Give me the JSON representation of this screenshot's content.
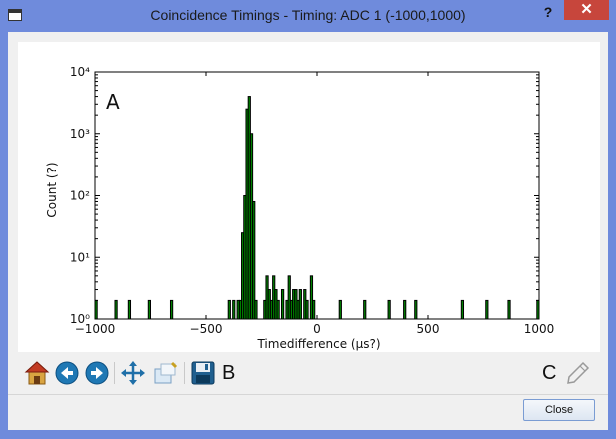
{
  "window": {
    "title": "Coincidence Timings - Timing: ADC 1 (-1000,1000)",
    "help_label": "?",
    "close_label": "✕"
  },
  "toolbar": {
    "buttons": [
      {
        "name": "home",
        "icon": "home-icon"
      },
      {
        "name": "back",
        "icon": "arrow-left-icon"
      },
      {
        "name": "forward",
        "icon": "arrow-right-icon"
      },
      {
        "name": "pan",
        "icon": "move-arrows-icon"
      },
      {
        "name": "zoom",
        "icon": "zoom-icon"
      },
      {
        "name": "save",
        "icon": "floppy-disk-icon"
      },
      {
        "name": "edit",
        "icon": "pencil-icon"
      }
    ],
    "label_b": "B",
    "label_c": "C"
  },
  "footer": {
    "close_button": "Close"
  },
  "colors": {
    "bar_fill": "#008000",
    "bar_edge": "#000000",
    "titlebar": "#6f8bdc",
    "close_red": "#c7463c"
  },
  "chart_data": {
    "type": "bar",
    "xlabel": "Timedifference (µs?)",
    "ylabel": "Count (?)",
    "annotation": "A",
    "xlim": [
      -1000,
      1000
    ],
    "ylim": [
      1,
      10000
    ],
    "yscale": "log",
    "xticks": [
      -1000,
      -500,
      0,
      500,
      1000
    ],
    "xtick_labels": [
      "−1000",
      "−500",
      "0",
      "500",
      "1000"
    ],
    "yticks": [
      1,
      10,
      100,
      1000,
      10000
    ],
    "ytick_labels": [
      "10⁰",
      "10¹",
      "10²",
      "10³",
      "10⁴"
    ],
    "bin_width": 10,
    "bins": [
      {
        "x": -995,
        "y": 2
      },
      {
        "x": -905,
        "y": 2
      },
      {
        "x": -845,
        "y": 2
      },
      {
        "x": -755,
        "y": 2
      },
      {
        "x": -655,
        "y": 2
      },
      {
        "x": -395,
        "y": 2
      },
      {
        "x": -375,
        "y": 2
      },
      {
        "x": -345,
        "y": 2
      },
      {
        "x": -355,
        "y": 2
      },
      {
        "x": -335,
        "y": 25
      },
      {
        "x": -325,
        "y": 100
      },
      {
        "x": -315,
        "y": 2500
      },
      {
        "x": -305,
        "y": 4000
      },
      {
        "x": -295,
        "y": 1000
      },
      {
        "x": -285,
        "y": 80
      },
      {
        "x": -275,
        "y": 2
      },
      {
        "x": -235,
        "y": 2
      },
      {
        "x": -225,
        "y": 5
      },
      {
        "x": -215,
        "y": 3
      },
      {
        "x": -205,
        "y": 2
      },
      {
        "x": -195,
        "y": 5
      },
      {
        "x": -185,
        "y": 3
      },
      {
        "x": -175,
        "y": 2
      },
      {
        "x": -155,
        "y": 3
      },
      {
        "x": -135,
        "y": 2
      },
      {
        "x": -125,
        "y": 5
      },
      {
        "x": -115,
        "y": 2
      },
      {
        "x": -105,
        "y": 3
      },
      {
        "x": -95,
        "y": 3
      },
      {
        "x": -85,
        "y": 2
      },
      {
        "x": -75,
        "y": 3
      },
      {
        "x": -55,
        "y": 3
      },
      {
        "x": -45,
        "y": 2
      },
      {
        "x": -25,
        "y": 5
      },
      {
        "x": -15,
        "y": 2
      },
      {
        "x": 105,
        "y": 2
      },
      {
        "x": 215,
        "y": 2
      },
      {
        "x": 325,
        "y": 2
      },
      {
        "x": 395,
        "y": 2
      },
      {
        "x": 445,
        "y": 2
      },
      {
        "x": 655,
        "y": 2
      },
      {
        "x": 765,
        "y": 2
      },
      {
        "x": 865,
        "y": 2
      },
      {
        "x": 995,
        "y": 2
      }
    ]
  }
}
